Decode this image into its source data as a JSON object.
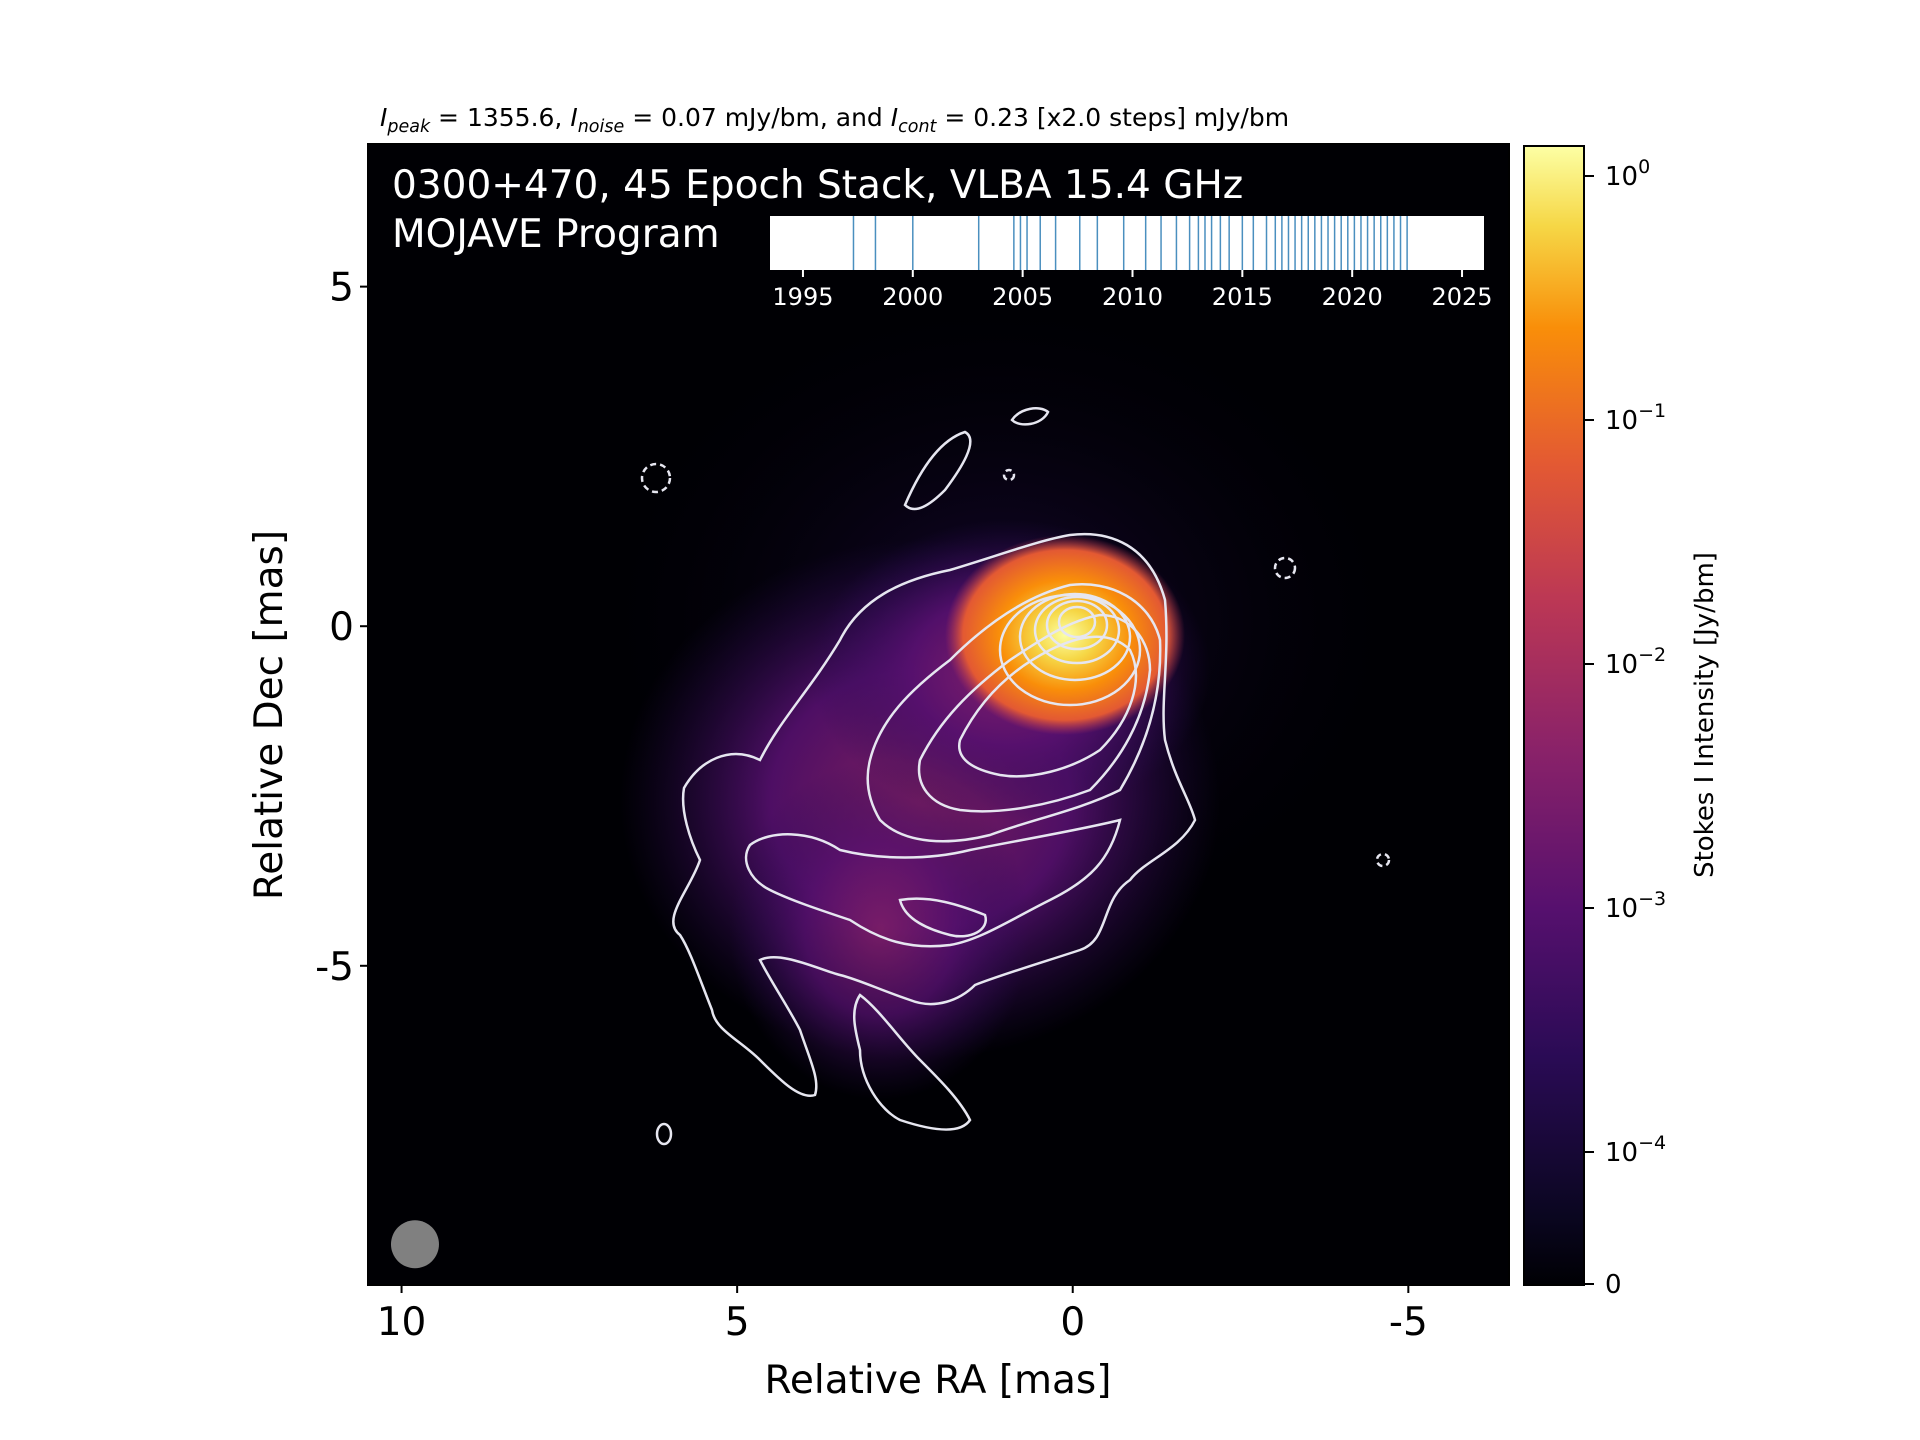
{
  "header": {
    "i_label": "I",
    "peak_sub": "peak",
    "peak_text": " = 1355.6, ",
    "noise_sub": "noise",
    "noise_text": " = 0.07 mJy/bm, and ",
    "cont_sub": "cont",
    "cont_text": " = 0.23 [x2.0 steps] mJy/bm"
  },
  "panel": {
    "title_line1": "0300+470, 45 Epoch Stack, VLBA 15.4 GHz",
    "title_line2": "MOJAVE Program"
  },
  "colors": {
    "background": "#000004",
    "contour": "#e6e6f0",
    "beam": "#808080",
    "epoch_tick": "#4a8fbf"
  },
  "chart_data": [
    {
      "type": "heatmap",
      "description_of_axes": "image of Stokes I intensity",
      "xlabel": "Relative RA [mas]",
      "ylabel": "Relative Dec [mas]",
      "xlim": [
        10.5,
        -6.5
      ],
      "ylim": [
        -9.7,
        7.1
      ],
      "x_ticks": [
        10,
        5,
        0,
        -5
      ],
      "x_tick_labels": [
        "10",
        "5",
        "0",
        "-5"
      ],
      "y_ticks": [
        5,
        0,
        -5
      ],
      "y_tick_labels": [
        "5",
        "0",
        "-5"
      ],
      "colormap": "inferno",
      "colorbar_label": "Stokes I Intensity [Jy/bm]",
      "colorbar_ticks": [
        {
          "value": 1,
          "label": "10",
          "exp": "0"
        },
        {
          "value": 0.1,
          "label": "10",
          "exp": "−1"
        },
        {
          "value": 0.01,
          "label": "10",
          "exp": "−2"
        },
        {
          "value": 0.001,
          "label": "10",
          "exp": "−3"
        },
        {
          "value": 0.0001,
          "label": "10",
          "exp": "−4"
        },
        {
          "value": 0,
          "label": "0",
          "exp": ""
        }
      ],
      "peak_position": [
        0,
        0
      ],
      "peak_jy_per_beam": 1.3556,
      "beam_position": [
        9.8,
        -9.1
      ]
    },
    {
      "type": "scatter",
      "description_of_axes": "epoch timeline inset",
      "xlim": [
        1993.5,
        2026
      ],
      "x_ticks": [
        1995,
        2000,
        2005,
        2010,
        2015,
        2020,
        2025
      ],
      "x_tick_labels": [
        "1995",
        "2000",
        "2005",
        "2010",
        "2015",
        "2020",
        "2025"
      ],
      "epochs": [
        1997.3,
        1998.3,
        2000.0,
        2003.0,
        2004.6,
        2004.9,
        2005.2,
        2005.8,
        2006.5,
        2007.6,
        2008.4,
        2009.6,
        2010.6,
        2011.3,
        2012.0,
        2012.6,
        2013.0,
        2013.3,
        2013.6,
        2014.0,
        2014.4,
        2015.0,
        2015.5,
        2016.1,
        2016.5,
        2016.8,
        2017.1,
        2017.4,
        2017.7,
        2018.0,
        2018.3,
        2018.6,
        2018.9,
        2019.2,
        2019.5,
        2019.8,
        2020.1,
        2020.4,
        2020.7,
        2021.0,
        2021.3,
        2021.6,
        2021.9,
        2022.2,
        2022.5
      ]
    }
  ]
}
